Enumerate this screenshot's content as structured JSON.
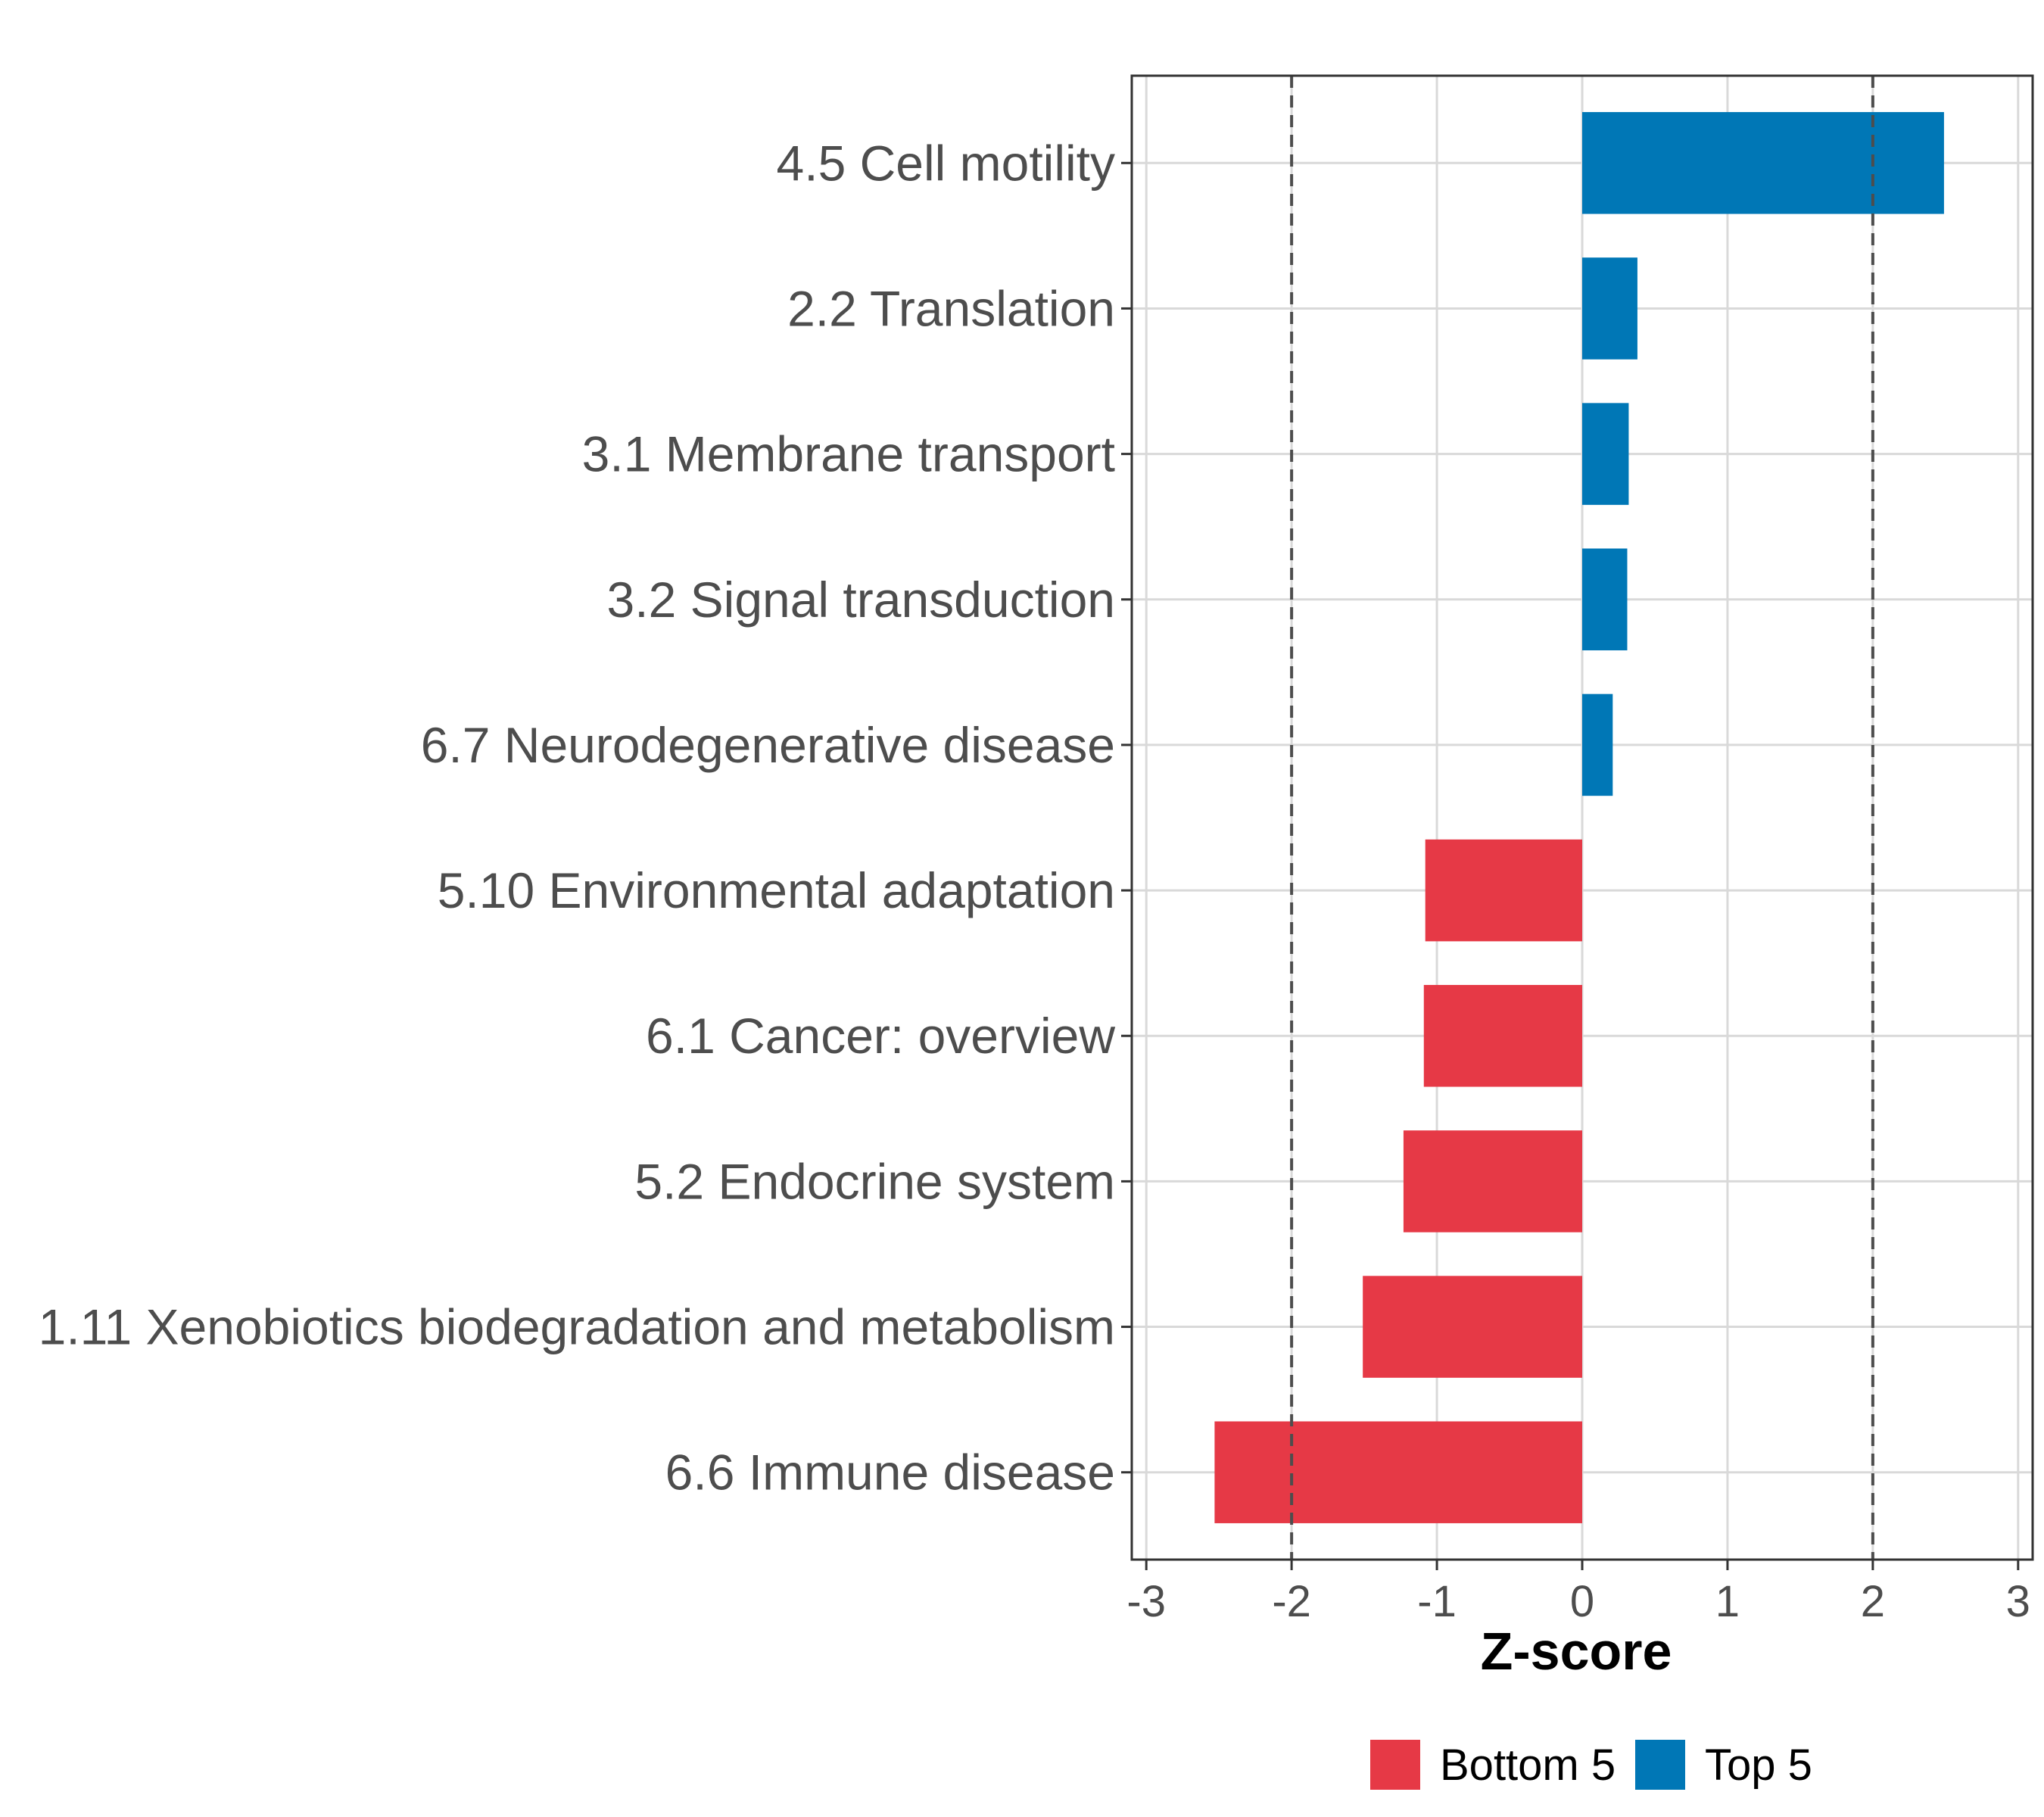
{
  "chart_data": {
    "type": "bar",
    "orientation": "horizontal",
    "title": "",
    "xlabel": "Z-score",
    "ylabel": "",
    "xlim": [
      -3.1,
      3.1
    ],
    "xticks": [
      -3,
      -2,
      -1,
      0,
      1,
      2,
      3
    ],
    "xtick_labels": [
      "-3",
      "-2",
      "-1",
      "0",
      "1",
      "2",
      "3"
    ],
    "reference_lines": [
      -2,
      2
    ],
    "grid": true,
    "categories": [
      "4.5 Cell motility",
      "2.2 Translation",
      "3.1 Membrane transport",
      "3.2 Signal transduction",
      "6.7 Neurodegenerative disease",
      "5.10 Environmental adaptation",
      "6.1 Cancer: overview",
      "5.2 Endocrine system",
      "1.11 Xenobiotics biodegradation and metabolism",
      "6.6 Immune disease"
    ],
    "values": [
      2.49,
      0.38,
      0.32,
      0.31,
      0.21,
      -1.08,
      -1.09,
      -1.23,
      -1.51,
      -2.53
    ],
    "groups": [
      "Top 5",
      "Top 5",
      "Top 5",
      "Top 5",
      "Top 5",
      "Bottom 5",
      "Bottom 5",
      "Bottom 5",
      "Bottom 5",
      "Bottom 5"
    ],
    "legend": {
      "placement": "bottom",
      "entries": [
        {
          "name": "Bottom 5",
          "color": "#e63946"
        },
        {
          "name": "Top 5",
          "color": "#0077b6"
        }
      ]
    }
  },
  "colors": {
    "grid": "#d9d9d9",
    "panel_border": "#333333",
    "reference_line": "#4d4d4d",
    "tick_text": "#4d4d4d"
  }
}
